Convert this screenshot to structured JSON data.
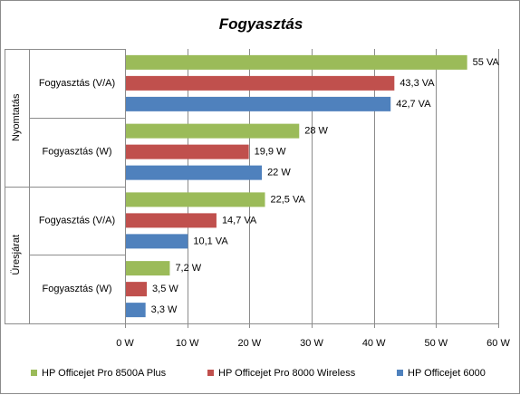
{
  "chart_data": {
    "type": "bar",
    "orientation": "horizontal",
    "title": "Fogyasztás",
    "groups": [
      {
        "name": "Nyomtatás",
        "categories": [
          {
            "label": "Fogyasztás (V/A)",
            "bars": [
              {
                "series": "HP Officejet Pro 8500A Plus",
                "value": 55,
                "label": "55 VA"
              },
              {
                "series": "HP Officejet Pro 8000 Wireless",
                "value": 43.3,
                "label": "43,3 VA"
              },
              {
                "series": "HP Officejet 6000",
                "value": 42.7,
                "label": "42,7 VA"
              }
            ]
          },
          {
            "label": "Fogyasztás (W)",
            "bars": [
              {
                "series": "HP Officejet Pro 8500A Plus",
                "value": 28,
                "label": "28 W"
              },
              {
                "series": "HP Officejet Pro 8000 Wireless",
                "value": 19.9,
                "label": "19,9 W"
              },
              {
                "series": "HP Officejet 6000",
                "value": 22,
                "label": "22 W"
              }
            ]
          }
        ]
      },
      {
        "name": "Üresjárat",
        "categories": [
          {
            "label": "Fogyasztás (V/A)",
            "bars": [
              {
                "series": "HP Officejet Pro 8500A Plus",
                "value": 22.5,
                "label": "22,5 VA"
              },
              {
                "series": "HP Officejet Pro 8000 Wireless",
                "value": 14.7,
                "label": "14,7 VA"
              },
              {
                "series": "HP Officejet 6000",
                "value": 10.1,
                "label": "10,1 VA"
              }
            ]
          },
          {
            "label": "Fogyasztás (W)",
            "bars": [
              {
                "series": "HP Officejet Pro 8500A Plus",
                "value": 7.2,
                "label": "7,2 W"
              },
              {
                "series": "HP Officejet Pro 8000 Wireless",
                "value": 3.5,
                "label": "3,5 W"
              },
              {
                "series": "HP Officejet 6000",
                "value": 3.3,
                "label": "3,3 W"
              }
            ]
          }
        ]
      }
    ],
    "xlim": [
      0,
      60
    ],
    "xticks": [
      0,
      10,
      20,
      30,
      40,
      50,
      60
    ],
    "xtick_labels": [
      "0 W",
      "10 W",
      "20 W",
      "30 W",
      "40 W",
      "50 W",
      "60 W"
    ],
    "grid": true,
    "legend_position": "bottom",
    "series": [
      {
        "name": "HP Officejet Pro 8500A Plus",
        "color": "#9bbb59"
      },
      {
        "name": "HP Officejet Pro 8000 Wireless",
        "color": "#c0504d"
      },
      {
        "name": "HP Officejet 6000",
        "color": "#4f81bd"
      }
    ]
  }
}
